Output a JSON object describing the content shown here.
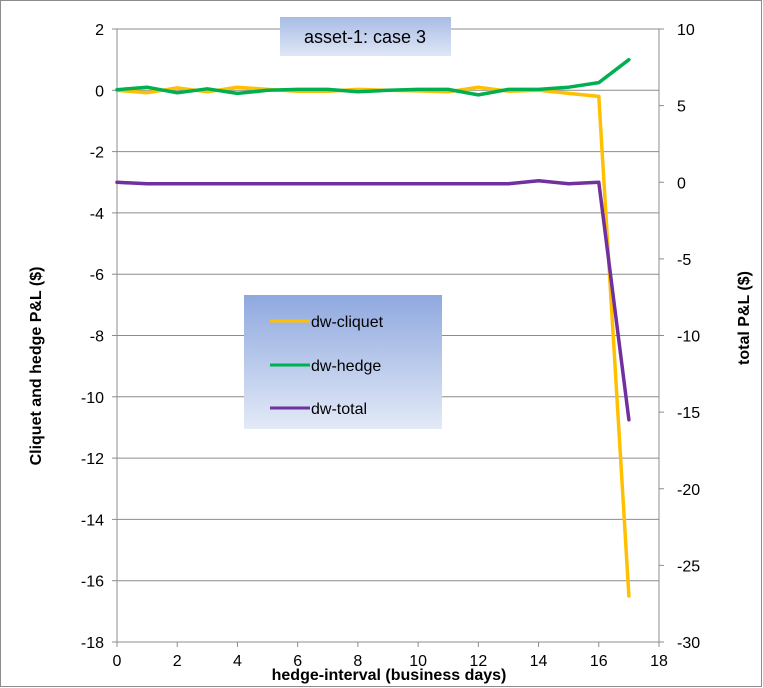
{
  "chart_data": {
    "type": "line",
    "title": "asset-1: case 3",
    "xlabel": "hedge-interval (business days)",
    "ylabel_left": "Cliquet and hedge P&L ($)",
    "ylabel_right": "total P&L  ($)",
    "xlim": [
      0,
      18
    ],
    "ylim_left": [
      -18,
      2
    ],
    "ylim_right": [
      -30,
      10
    ],
    "x_ticks": [
      "0",
      "2",
      "4",
      "6",
      "8",
      "10",
      "12",
      "14",
      "16",
      "18"
    ],
    "y_left_ticks": [
      "2",
      "0",
      "-2",
      "-4",
      "-6",
      "-8",
      "-10",
      "-12",
      "-14",
      "-16",
      "-18"
    ],
    "y_right_ticks": [
      "10",
      "5",
      "0",
      "-5",
      "-10",
      "-15",
      "-20",
      "-25",
      "-30"
    ],
    "grid": "horizontal",
    "legend_position": "center-left",
    "x": [
      0,
      1,
      2,
      3,
      4,
      5,
      6,
      7,
      8,
      9,
      10,
      11,
      12,
      13,
      14,
      15,
      16,
      17
    ],
    "series": [
      {
        "name": "dw-cliquet",
        "axis": "left",
        "color": "#FFC000",
        "values": [
          0.0,
          -0.08,
          0.08,
          -0.05,
          0.1,
          0.03,
          -0.03,
          -0.03,
          0.03,
          0.0,
          -0.02,
          -0.05,
          0.1,
          -0.03,
          0.0,
          -0.1,
          -0.2,
          -16.5
        ]
      },
      {
        "name": "dw-hedge",
        "axis": "left",
        "color": "#00B050",
        "values": [
          0.02,
          0.1,
          -0.08,
          0.05,
          -0.1,
          0.0,
          0.03,
          0.03,
          -0.05,
          0.0,
          0.03,
          0.03,
          -0.15,
          0.03,
          0.03,
          0.1,
          0.25,
          1.0
        ]
      },
      {
        "name": "dw-total",
        "axis": "right",
        "color": "#7030A0",
        "values": [
          0.0,
          -0.1,
          -0.1,
          -0.1,
          -0.1,
          -0.1,
          -0.1,
          -0.1,
          -0.1,
          -0.1,
          -0.1,
          -0.1,
          -0.1,
          -0.1,
          0.1,
          -0.1,
          0.0,
          -15.5
        ]
      }
    ]
  }
}
